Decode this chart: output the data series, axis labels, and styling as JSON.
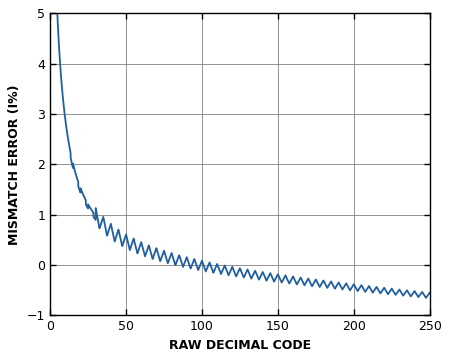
{
  "title": "",
  "xlabel": "RAW DECIMAL CODE",
  "ylabel": "MISMATCH ERROR (I%)",
  "xlim": [
    0,
    250
  ],
  "ylim": [
    -1,
    5
  ],
  "xticks": [
    0,
    50,
    100,
    150,
    200,
    250
  ],
  "yticks": [
    -1,
    0,
    1,
    2,
    3,
    4,
    5
  ],
  "line_color": "#2060a0",
  "line_width": 1.3,
  "grid_color": "#808080",
  "grid_linewidth": 0.6,
  "background_color": "#ffffff",
  "xlabel_fontsize": 9,
  "ylabel_fontsize": 9
}
